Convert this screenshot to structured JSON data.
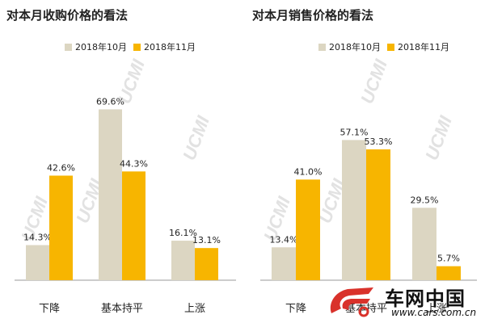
{
  "colors": {
    "oct": "#dcd6c2",
    "nov": "#f7b500",
    "axis": "#999999",
    "text": "#222222",
    "watermark": "#e2e2e2"
  },
  "watermark_text": "UCMI",
  "brand": {
    "name": "车网中国",
    "url": "www.cars.com.cn"
  },
  "chart_data": [
    {
      "type": "bar",
      "title": "对本月收购价格的看法",
      "categories": [
        "下降",
        "基本持平",
        "上涨"
      ],
      "series": [
        {
          "name": "2018年10月",
          "values": [
            14.3,
            69.6,
            16.1
          ],
          "labels": [
            "14.3%",
            "69.6%",
            "16.1%"
          ]
        },
        {
          "name": "2018年11月",
          "values": [
            42.6,
            44.3,
            13.1
          ],
          "labels": [
            "42.6%",
            "44.3%",
            "13.1%"
          ]
        }
      ],
      "ylim": [
        0,
        70
      ],
      "legend": "top",
      "grid": false
    },
    {
      "type": "bar",
      "title": "对本月销售价格的看法",
      "categories": [
        "下降",
        "基本持平",
        "上涨"
      ],
      "series": [
        {
          "name": "2018年10月",
          "values": [
            13.4,
            57.1,
            29.5
          ],
          "labels": [
            "13.4%",
            "57.1%",
            "29.5%"
          ]
        },
        {
          "name": "2018年11月",
          "values": [
            41.0,
            53.3,
            5.7
          ],
          "labels": [
            "41.0%",
            "53.3%",
            "5.7%"
          ]
        }
      ],
      "ylim": [
        0,
        70
      ],
      "legend": "top",
      "grid": false
    }
  ]
}
